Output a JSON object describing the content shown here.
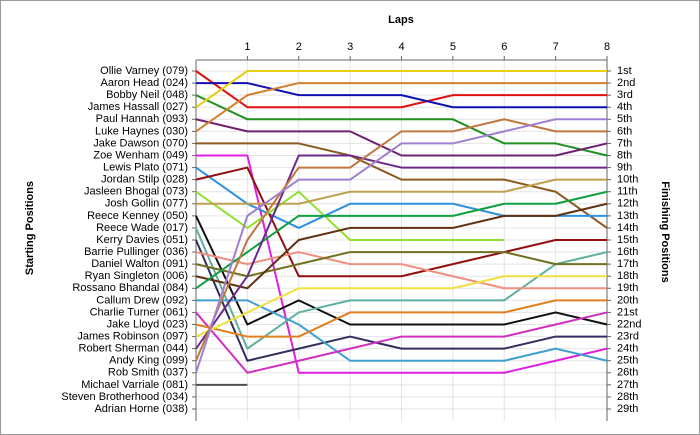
{
  "chart_data": {
    "type": "line",
    "title": "Laps",
    "y_label": "Starting Positions",
    "y2_label": "Finishing Positions",
    "x": [
      0,
      1,
      2,
      3,
      4,
      5,
      6,
      7,
      8
    ],
    "xlim": [
      0,
      8
    ],
    "xticks": [
      1,
      2,
      3,
      4,
      5,
      6,
      7,
      8
    ],
    "ylim": [
      1,
      29
    ],
    "y_inverted": true,
    "grid": true,
    "yticks": [
      {
        "value": 1,
        "label": "1st"
      },
      {
        "value": 2,
        "label": "2nd"
      },
      {
        "value": 3,
        "label": "3rd"
      },
      {
        "value": 4,
        "label": "4th"
      },
      {
        "value": 5,
        "label": "5th"
      },
      {
        "value": 6,
        "label": "6th"
      },
      {
        "value": 7,
        "label": "7th"
      },
      {
        "value": 8,
        "label": "8th"
      },
      {
        "value": 9,
        "label": "9th"
      },
      {
        "value": 10,
        "label": "10th"
      },
      {
        "value": 11,
        "label": "11th"
      },
      {
        "value": 12,
        "label": "12th"
      },
      {
        "value": 13,
        "label": "13th"
      },
      {
        "value": 14,
        "label": "14th"
      },
      {
        "value": 15,
        "label": "15th"
      },
      {
        "value": 16,
        "label": "16th"
      },
      {
        "value": 17,
        "label": "17th"
      },
      {
        "value": 18,
        "label": "18th"
      },
      {
        "value": 19,
        "label": "19th"
      },
      {
        "value": 20,
        "label": "20th"
      },
      {
        "value": 21,
        "label": "21st"
      },
      {
        "value": 22,
        "label": "22nd"
      },
      {
        "value": 23,
        "label": "23rd"
      },
      {
        "value": 24,
        "label": "24th"
      },
      {
        "value": 25,
        "label": "25th"
      },
      {
        "value": 26,
        "label": "26th"
      },
      {
        "value": 27,
        "label": "27th"
      },
      {
        "value": 28,
        "label": "28th"
      },
      {
        "value": 29,
        "label": "29th"
      }
    ],
    "series": [
      {
        "name": "Ollie Varney (079)",
        "color": "#e01010",
        "values": [
          1,
          4,
          4,
          4,
          4,
          3,
          3,
          3,
          3
        ]
      },
      {
        "name": "Aaron Head (024)",
        "color": "#1010b0",
        "values": [
          2,
          2,
          3,
          3,
          3,
          4,
          4,
          4,
          4
        ]
      },
      {
        "name": "Bobby Neil (048)",
        "color": "#209020",
        "values": [
          3,
          5,
          5,
          5,
          5,
          5,
          7,
          7,
          8
        ]
      },
      {
        "name": "James Hassall (027)",
        "color": "#e8d010",
        "values": [
          4,
          1,
          1,
          1,
          1,
          1,
          1,
          1,
          1
        ]
      },
      {
        "name": "Paul Hannah (093)",
        "color": "#702070",
        "values": [
          5,
          6,
          6,
          6,
          8,
          8,
          8,
          8,
          7
        ]
      },
      {
        "name": "Luke Haynes (030)",
        "color": "#d08030",
        "values": [
          6,
          3,
          2,
          2,
          2,
          2,
          2,
          2,
          2
        ]
      },
      {
        "name": "Jake Dawson (070)",
        "color": "#8a5a20",
        "values": [
          7,
          7,
          7,
          8,
          10,
          10,
          10,
          11,
          14
        ]
      },
      {
        "name": "Zoe Wenham (049)",
        "color": "#e020e0",
        "values": [
          8,
          8,
          26,
          26,
          26,
          26,
          26,
          25,
          24
        ]
      },
      {
        "name": "Lewis Plato (071)",
        "color": "#3090e0",
        "values": [
          9,
          12,
          14,
          12,
          12,
          12,
          13,
          13,
          13
        ]
      },
      {
        "name": "Jordan Stilp (028)",
        "color": "#901010",
        "values": [
          10,
          9,
          18,
          18,
          18,
          17,
          16,
          15,
          15
        ]
      },
      {
        "name": "Jasleen Bhogal (073)",
        "color": "#90e030",
        "values": [
          11,
          14,
          11,
          15,
          15,
          15,
          15,
          null,
          null
        ]
      },
      {
        "name": "Josh Gollin (077)",
        "color": "#c0a050",
        "values": [
          12,
          12,
          12,
          11,
          11,
          11,
          11,
          10,
          10
        ]
      },
      {
        "name": "Reece Kenney (050)",
        "color": "#101010",
        "values": [
          13,
          22,
          20,
          22,
          22,
          22,
          22,
          21,
          22
        ]
      },
      {
        "name": "Reece Wade (017)",
        "color": "#60b0a0",
        "values": [
          14,
          24,
          21,
          20,
          20,
          20,
          20,
          17,
          16
        ]
      },
      {
        "name": "Kerry Davies (051)",
        "color": "#303060",
        "values": [
          15,
          25,
          24,
          23,
          24,
          24,
          24,
          23,
          23
        ]
      },
      {
        "name": "Barrie Pullinger (036)",
        "color": "#f09080",
        "values": [
          16,
          17,
          16,
          17,
          17,
          18,
          19,
          19,
          19
        ]
      },
      {
        "name": "Daniel Walton (091)",
        "color": "#707020",
        "values": [
          17,
          18,
          17,
          16,
          16,
          16,
          16,
          17,
          17
        ]
      },
      {
        "name": "Ryan Singleton (006)",
        "color": "#603010",
        "values": [
          18,
          19,
          15,
          14,
          14,
          14,
          13,
          13,
          12
        ]
      },
      {
        "name": "Rossano Bhandal (084)",
        "color": "#10a040",
        "values": [
          19,
          16,
          13,
          13,
          13,
          13,
          12,
          12,
          11
        ]
      },
      {
        "name": "Callum Drew (092)",
        "color": "#40a0d0",
        "values": [
          20,
          20,
          22,
          25,
          25,
          25,
          25,
          24,
          25
        ]
      },
      {
        "name": "Charlie Turner (061)",
        "color": "#d030c0",
        "values": [
          21,
          26,
          25,
          24,
          23,
          23,
          23,
          22,
          21
        ]
      },
      {
        "name": "Jake Lloyd (023)",
        "color": "#e08020",
        "values": [
          22,
          23,
          23,
          21,
          21,
          21,
          21,
          20,
          20
        ]
      },
      {
        "name": "James Robinson (097)",
        "color": "#f0e040",
        "values": [
          23,
          21,
          19,
          19,
          19,
          19,
          18,
          18,
          18
        ]
      },
      {
        "name": "Robert Sherman (044)",
        "color": "#6a2a8a",
        "values": [
          24,
          18,
          8,
          8,
          9,
          9,
          9,
          9,
          9
        ]
      },
      {
        "name": "Andy King (099)",
        "color": "#c07840",
        "values": [
          25,
          15,
          9,
          9,
          6,
          6,
          5,
          6,
          6
        ]
      },
      {
        "name": "Rob Smith (037)",
        "color": "#a080d0",
        "values": [
          26,
          13,
          10,
          10,
          7,
          7,
          6,
          5,
          5
        ]
      },
      {
        "name": "Michael Varriale (081)",
        "color": "#505050",
        "values": [
          27,
          27,
          null,
          null,
          null,
          null,
          null,
          null,
          null
        ]
      },
      {
        "name": "Steven Brotherhood (034)",
        "color": "#808080",
        "values": [
          28,
          null,
          null,
          null,
          null,
          null,
          null,
          null,
          null
        ]
      },
      {
        "name": "Adrian Horne (038)",
        "color": "#808080",
        "values": [
          29,
          null,
          null,
          null,
          null,
          null,
          null,
          null,
          null
        ]
      }
    ]
  }
}
